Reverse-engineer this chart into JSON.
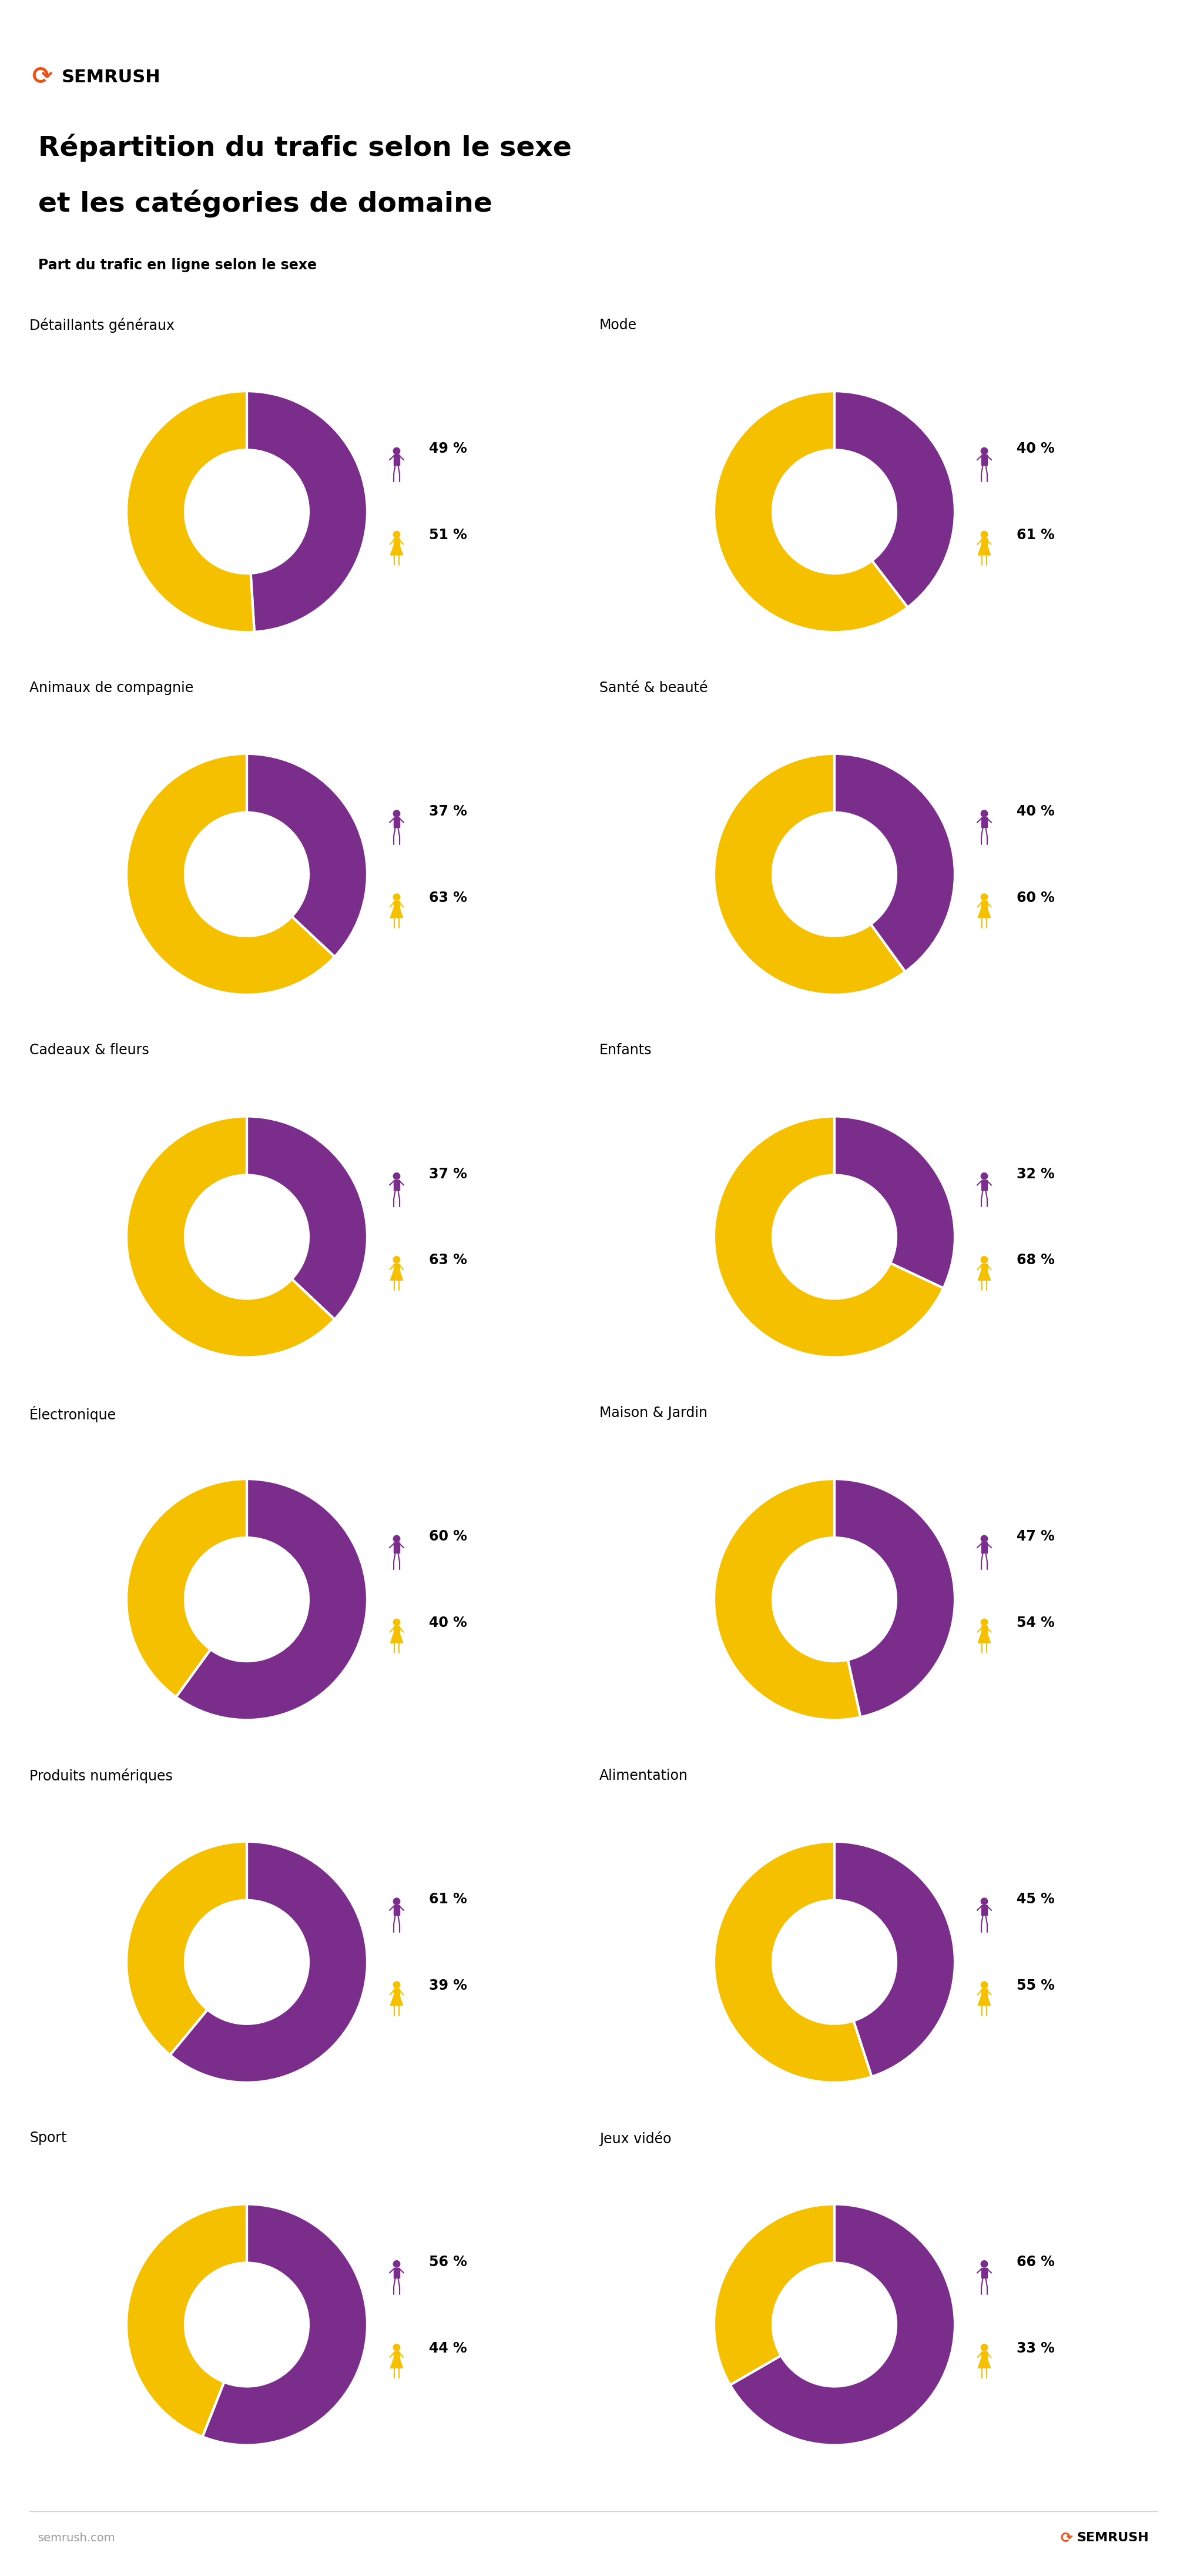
{
  "title_line1": "Répartition du trafic selon le sexe",
  "title_line2": "et les catégories de domaine",
  "subtitle": "Part du trafic en ligne selon le sexe",
  "logo_text": "SEMRUSH",
  "footer_url": "semrush.com",
  "male_color": "#7B2D8B",
  "female_color": "#F5C000",
  "background_color": "#FFFFFF",
  "orange_color": "#E8541A",
  "categories": [
    {
      "name": "Détaillants généraux",
      "male": 49,
      "female": 51
    },
    {
      "name": "Mode",
      "male": 40,
      "female": 61
    },
    {
      "name": "Animaux de compagnie",
      "male": 37,
      "female": 63
    },
    {
      "name": "Santé & beauté",
      "male": 40,
      "female": 60
    },
    {
      "name": "Cadeaux & fleurs",
      "male": 37,
      "female": 63
    },
    {
      "name": "Enfants",
      "male": 32,
      "female": 68
    },
    {
      "name": "Électronique",
      "male": 60,
      "female": 40
    },
    {
      "name": "Maison & Jardin",
      "male": 47,
      "female": 54
    },
    {
      "name": "Produits numériques",
      "male": 61,
      "female": 39
    },
    {
      "name": "Alimentation",
      "male": 45,
      "female": 55
    },
    {
      "name": "Sport",
      "male": 56,
      "female": 44
    },
    {
      "name": "Jeux vidéo",
      "male": 66,
      "female": 33
    }
  ]
}
